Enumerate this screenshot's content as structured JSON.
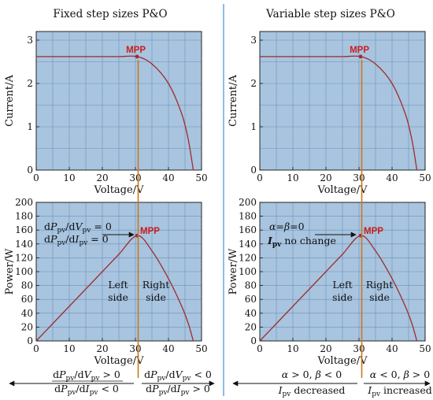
{
  "colors": {
    "plot_bg": "#a8c4df",
    "curve": "#a02c2c",
    "mpp_text": "#c81e1e",
    "vline": "#c8781e",
    "divider": "#5aa0e0"
  },
  "left": {
    "title": "Fixed step sizes P&O",
    "iv_ann": {
      "mpp": "MPP"
    },
    "pv_ann": {
      "mpp": "MPP",
      "cond1": "dPpv/dVpv = 0",
      "cond2": "dPpv/dIpv = 0",
      "left_side_1": "Left",
      "left_side_2": "side",
      "right_side_1": "Right",
      "right_side_2": "side"
    },
    "bottom": {
      "left_top": "dPpv/dVpv > 0",
      "left_bot": "dPpv/dIpv < 0",
      "right_top": "dPpv/dVpv < 0",
      "right_bot": "dPpv/dIpv > 0"
    }
  },
  "right": {
    "title": "Variable step sizes P&O",
    "iv_ann": {
      "mpp": "MPP"
    },
    "pv_ann": {
      "mpp": "MPP",
      "cond1": "α=β=0",
      "cond2": "Ipv no change",
      "left_side_1": "Left",
      "left_side_2": "side",
      "right_side_1": "Right",
      "right_side_2": "side"
    },
    "bottom": {
      "left_top": "α > 0, β < 0",
      "left_bot": "Ipv decreased",
      "right_top": "α < 0, β > 0",
      "right_bot": "Ipv increased"
    }
  },
  "chart_data": [
    {
      "type": "line",
      "panel": "Fixed step sizes P&O — I-V curve",
      "xlabel": "Voltage/V",
      "ylabel": "Current/A",
      "xlim": [
        0,
        50
      ],
      "ylim": [
        0,
        3.2
      ],
      "xticks": [
        0,
        10,
        20,
        30,
        40,
        50
      ],
      "yticks": [
        0,
        1,
        2,
        3
      ],
      "grid": true,
      "x": [
        0,
        5,
        10,
        15,
        20,
        25,
        30.5,
        35,
        40,
        44,
        46,
        47.5
      ],
      "y": [
        2.62,
        2.62,
        2.62,
        2.62,
        2.62,
        2.62,
        2.62,
        2.45,
        2.0,
        1.3,
        0.7,
        0.0
      ],
      "mpp": {
        "label": "MPP",
        "x": 30.5,
        "y": 2.62
      }
    },
    {
      "type": "line",
      "panel": "Fixed step sizes P&O — P-V curve",
      "xlabel": "Voltage/V",
      "ylabel": "Power/W",
      "xlim": [
        0,
        50
      ],
      "ylim": [
        0,
        200
      ],
      "xticks": [
        0,
        10,
        20,
        30,
        40,
        50
      ],
      "yticks": [
        0,
        20,
        40,
        60,
        80,
        100,
        120,
        140,
        160,
        180,
        200
      ],
      "grid": true,
      "x": [
        0,
        5,
        10,
        15,
        20,
        25,
        30.5,
        35,
        40,
        44,
        46,
        47.5
      ],
      "y": [
        0,
        25,
        50,
        75,
        100,
        125,
        152,
        130,
        90,
        50,
        25,
        0
      ],
      "mpp": {
        "label": "MPP",
        "x": 30.5,
        "y": 152
      }
    },
    {
      "type": "line",
      "panel": "Variable step sizes P&O — I-V curve",
      "xlabel": "Voltage/V",
      "ylabel": "Current/A",
      "xlim": [
        0,
        50
      ],
      "ylim": [
        0,
        3.2
      ],
      "xticks": [
        0,
        10,
        20,
        30,
        40,
        50
      ],
      "yticks": [
        0,
        1,
        2,
        3
      ],
      "grid": true,
      "x": [
        0,
        5,
        10,
        15,
        20,
        25,
        30.5,
        35,
        40,
        44,
        46,
        47.5
      ],
      "y": [
        2.62,
        2.62,
        2.62,
        2.62,
        2.62,
        2.62,
        2.62,
        2.45,
        2.0,
        1.3,
        0.7,
        0.0
      ],
      "mpp": {
        "label": "MPP",
        "x": 30.5,
        "y": 2.62
      }
    },
    {
      "type": "line",
      "panel": "Variable step sizes P&O — P-V curve",
      "xlabel": "Voltage/V",
      "ylabel": "Power/W",
      "xlim": [
        0,
        50
      ],
      "ylim": [
        0,
        200
      ],
      "xticks": [
        0,
        10,
        20,
        30,
        40,
        50
      ],
      "yticks": [
        0,
        20,
        40,
        60,
        80,
        100,
        120,
        140,
        160,
        180,
        200
      ],
      "grid": true,
      "x": [
        0,
        5,
        10,
        15,
        20,
        25,
        30.5,
        35,
        40,
        44,
        46,
        47.5
      ],
      "y": [
        0,
        25,
        50,
        75,
        100,
        125,
        152,
        130,
        90,
        50,
        25,
        0
      ],
      "mpp": {
        "label": "MPP",
        "x": 30.5,
        "y": 152
      }
    }
  ]
}
